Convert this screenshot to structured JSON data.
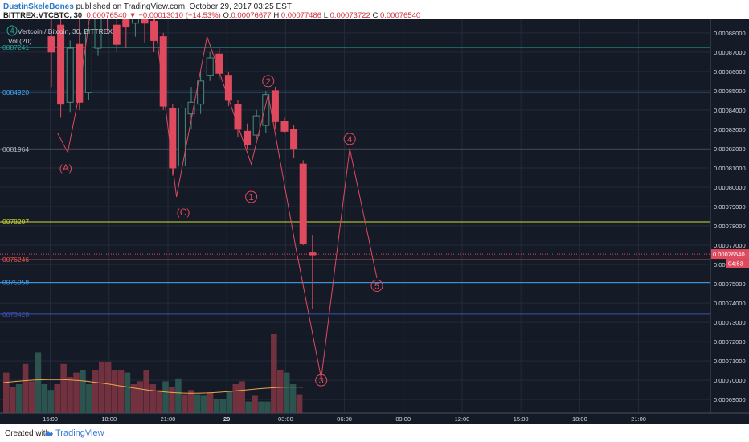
{
  "header": {
    "author": "DustinSkeleBones",
    "published_text": " published on TradingView.com, October 29, 2017 03:25 EST",
    "symbol_line": "BITTREX:VTCBTC, 30",
    "change": "▼ −0.00013010 (−14.53%)",
    "o_label": " O:",
    "o_value": "0.00076677",
    "h_label": " H:",
    "h_value": "0.00077486",
    "l_label": " L:",
    "l_value": "0.00073722",
    "c_label": " C:",
    "c_value": "0.00076540"
  },
  "legend": {
    "series_title": "Vertcoin / Bitcoin, 30, BITTREX",
    "volume_title": "Vol (20)"
  },
  "footer": {
    "created_with": "Created with",
    "brand": "TradingView"
  },
  "colors": {
    "background": "#141a26",
    "bull": "#3a6b5f",
    "bear": "#e04a5e",
    "grid": "#242b3b",
    "axis_text": "#d6d8de",
    "waves": "#e04a5e"
  },
  "chart_data": {
    "type": "candlestick",
    "x_tick_labels": [
      "15:00",
      "18:00",
      "21:00",
      "29",
      "03:00",
      "06:00",
      "09:00",
      "12:00",
      "15:00",
      "18:00",
      "21:00"
    ],
    "y_tick_labels": [
      "0.00088000",
      "0.00087000",
      "0.00086000",
      "0.00085000",
      "0.00084000",
      "0.00083000",
      "0.00082000",
      "0.00081000",
      "0.00080000",
      "0.00079000",
      "0.00078000",
      "0.00077000",
      "0.00076000",
      "0.00075000",
      "0.00074000",
      "0.00073000",
      "0.00072000",
      "0.00071000",
      "0.00070000",
      "0.00069000"
    ],
    "ylim": [
      0.000683,
      0.000887
    ],
    "last_price": "0.00076540",
    "countdown": "04:53",
    "hlines": [
      {
        "label": "0087241",
        "value": 0.00087241,
        "color": "#26a69a"
      },
      {
        "label": "0084920",
        "value": 0.0008492,
        "color": "#42a5f5"
      },
      {
        "label": "0081964",
        "value": 0.00081964,
        "color": "#b0b3ba"
      },
      {
        "label": "0078207",
        "value": 0.00078207,
        "color": "#cddc39"
      },
      {
        "label": "0076246",
        "value": 0.00076246,
        "color": "#ef5350"
      },
      {
        "label": "0075058",
        "value": 0.00075058,
        "color": "#42a5f5"
      },
      {
        "label": "0073428",
        "value": 0.00073428,
        "color": "#3f51b5"
      }
    ],
    "candles": [
      {
        "x": 1,
        "o": 0.000878,
        "h": 0.00089,
        "l": 0.000852,
        "c": 0.00087
      },
      {
        "x": 2,
        "o": 0.000884,
        "h": 0.00089,
        "l": 0.000836,
        "c": 0.000843
      },
      {
        "x": 3,
        "o": 0.000844,
        "h": 0.000876,
        "l": 0.000839,
        "c": 0.000872
      },
      {
        "x": 4,
        "o": 0.000874,
        "h": 0.000889,
        "l": 0.00084,
        "c": 0.000844
      },
      {
        "x": 5,
        "o": 0.000849,
        "h": 0.000883,
        "l": 0.000845,
        "c": 0.000881
      },
      {
        "x": 6,
        "o": 0.000872,
        "h": 0.00089,
        "l": 0.000868,
        "c": 0.000888
      },
      {
        "x": 7,
        "o": 0.000895,
        "h": 0.000898,
        "l": 0.00088,
        "c": 0.000888
      },
      {
        "x": 8,
        "o": 0.000884,
        "h": 0.00089,
        "l": 0.00087,
        "c": 0.000874
      },
      {
        "x": 9,
        "o": 0.00089,
        "h": 0.000892,
        "l": 0.000872,
        "c": 0.000883
      },
      {
        "x": 10,
        "o": 0.000885,
        "h": 0.000895,
        "l": 0.000878,
        "c": 0.00089
      },
      {
        "x": 11,
        "o": 0.000893,
        "h": 0.000895,
        "l": 0.000875,
        "c": 0.000885
      },
      {
        "x": 12,
        "o": 0.000886,
        "h": 0.000888,
        "l": 0.00087,
        "c": 0.000876
      },
      {
        "x": 13,
        "o": 0.000878,
        "h": 0.00088,
        "l": 0.00084,
        "c": 0.000842
      },
      {
        "x": 14,
        "o": 0.000841,
        "h": 0.000843,
        "l": 0.000806,
        "c": 0.00081
      },
      {
        "x": 15,
        "o": 0.000811,
        "h": 0.000843,
        "l": 0.000808,
        "c": 0.000841
      },
      {
        "x": 16,
        "o": 0.000838,
        "h": 0.000852,
        "l": 0.00083,
        "c": 0.000844
      },
      {
        "x": 17,
        "o": 0.000843,
        "h": 0.00086,
        "l": 0.000838,
        "c": 0.000855
      },
      {
        "x": 18,
        "o": 0.000858,
        "h": 0.00087,
        "l": 0.000855,
        "c": 0.000867
      },
      {
        "x": 19,
        "o": 0.000869,
        "h": 0.000872,
        "l": 0.000856,
        "c": 0.000859
      },
      {
        "x": 20,
        "o": 0.000858,
        "h": 0.00086,
        "l": 0.000842,
        "c": 0.000845
      },
      {
        "x": 21,
        "o": 0.000843,
        "h": 0.000845,
        "l": 0.000826,
        "c": 0.00083
      },
      {
        "x": 22,
        "o": 0.000829,
        "h": 0.000833,
        "l": 0.00082,
        "c": 0.000822
      },
      {
        "x": 23,
        "o": 0.000827,
        "h": 0.00084,
        "l": 0.000825,
        "c": 0.000837
      },
      {
        "x": 24,
        "o": 0.000832,
        "h": 0.00085,
        "l": 0.000828,
        "c": 0.000848
      },
      {
        "x": 25,
        "o": 0.00085,
        "h": 0.000852,
        "l": 0.00083,
        "c": 0.000834
      },
      {
        "x": 26,
        "o": 0.000834,
        "h": 0.000836,
        "l": 0.000828,
        "c": 0.000829
      },
      {
        "x": 27,
        "o": 0.00083,
        "h": 0.000832,
        "l": 0.000815,
        "c": 0.00082
      },
      {
        "x": 28,
        "o": 0.000812,
        "h": 0.000814,
        "l": 0.00077,
        "c": 0.000771
      },
      {
        "x": 29,
        "o": 0.000766,
        "h": 0.000775,
        "l": 0.000737,
        "c": 0.000765
      }
    ],
    "volume": [
      {
        "x": 0,
        "v": 0.28,
        "bull": false
      },
      {
        "x": 1,
        "v": 0.18,
        "bull": false
      },
      {
        "x": 2,
        "v": 0.2,
        "bull": true
      },
      {
        "x": 3,
        "v": 0.34,
        "bull": false
      },
      {
        "x": 4,
        "v": 0.22,
        "bull": false
      },
      {
        "x": 5,
        "v": 0.42,
        "bull": true
      },
      {
        "x": 6,
        "v": 0.2,
        "bull": true
      },
      {
        "x": 7,
        "v": 0.16,
        "bull": true
      },
      {
        "x": 8,
        "v": 0.2,
        "bull": false
      },
      {
        "x": 9,
        "v": 0.34,
        "bull": false
      },
      {
        "x": 10,
        "v": 0.25,
        "bull": false
      },
      {
        "x": 11,
        "v": 0.28,
        "bull": false
      },
      {
        "x": 12,
        "v": 0.3,
        "bull": true
      },
      {
        "x": 13,
        "v": 0.2,
        "bull": true
      },
      {
        "x": 14,
        "v": 0.3,
        "bull": false
      },
      {
        "x": 15,
        "v": 0.35,
        "bull": false
      },
      {
        "x": 16,
        "v": 0.35,
        "bull": false
      },
      {
        "x": 17,
        "v": 0.3,
        "bull": false
      },
      {
        "x": 18,
        "v": 0.3,
        "bull": false
      },
      {
        "x": 19,
        "v": 0.28,
        "bull": true
      },
      {
        "x": 20,
        "v": 0.2,
        "bull": false
      },
      {
        "x": 21,
        "v": 0.22,
        "bull": false
      },
      {
        "x": 22,
        "v": 0.3,
        "bull": false
      },
      {
        "x": 23,
        "v": 0.2,
        "bull": false
      },
      {
        "x": 24,
        "v": 0.16,
        "bull": false
      },
      {
        "x": 25,
        "v": 0.22,
        "bull": true
      },
      {
        "x": 26,
        "v": 0.18,
        "bull": false
      },
      {
        "x": 27,
        "v": 0.24,
        "bull": true
      },
      {
        "x": 28,
        "v": 0.13,
        "bull": false
      },
      {
        "x": 29,
        "v": 0.16,
        "bull": false
      },
      {
        "x": 30,
        "v": 0.13,
        "bull": true
      },
      {
        "x": 31,
        "v": 0.12,
        "bull": true
      },
      {
        "x": 32,
        "v": 0.14,
        "bull": false
      },
      {
        "x": 33,
        "v": 0.1,
        "bull": true
      },
      {
        "x": 34,
        "v": 0.1,
        "bull": true
      },
      {
        "x": 35,
        "v": 0.15,
        "bull": true
      },
      {
        "x": 36,
        "v": 0.2,
        "bull": false
      },
      {
        "x": 37,
        "v": 0.22,
        "bull": false
      },
      {
        "x": 38,
        "v": 0.08,
        "bull": true
      },
      {
        "x": 39,
        "v": 0.12,
        "bull": false
      },
      {
        "x": 40,
        "v": 0.08,
        "bull": true
      },
      {
        "x": 41,
        "v": 0.08,
        "bull": true
      },
      {
        "x": 42,
        "v": 0.55,
        "bull": false
      },
      {
        "x": 43,
        "v": 0.3,
        "bull": false
      },
      {
        "x": 44,
        "v": 0.28,
        "bull": true
      },
      {
        "x": 45,
        "v": 0.2,
        "bull": true
      },
      {
        "x": 46,
        "v": 0.13,
        "bull": false
      }
    ],
    "wave_labels": [
      {
        "label": "(A)",
        "x": 9.2,
        "y": 0.00081
      },
      {
        "label": "(C)",
        "x": 26.5,
        "y": 0.000787
      },
      {
        "label": "1",
        "x": 36.5,
        "y": 0.000795
      },
      {
        "label": "2",
        "x": 39.0,
        "y": 0.000855
      },
      {
        "label": "3",
        "x": 46.8,
        "y": 0.0007
      },
      {
        "label": "4",
        "x": 51.0,
        "y": 0.000825
      },
      {
        "label": "5",
        "x": 55.0,
        "y": 0.000749
      }
    ],
    "wave_path": [
      {
        "x": 8.0,
        "y": 0.000828
      },
      {
        "x": 9.5,
        "y": 0.000818
      },
      {
        "x": 11.0,
        "y": 0.000845
      },
      {
        "x": 13.0,
        "y": 0.000895
      },
      {
        "x": 22.0,
        "y": 0.000895
      },
      {
        "x": 25.5,
        "y": 0.000795
      },
      {
        "x": 30.0,
        "y": 0.000878
      },
      {
        "x": 36.5,
        "y": 0.000812
      },
      {
        "x": 39.0,
        "y": 0.000848
      },
      {
        "x": 43.0,
        "y": 0.00077
      },
      {
        "x": 46.8,
        "y": 0.000701
      },
      {
        "x": 51.0,
        "y": 0.00082
      },
      {
        "x": 55.0,
        "y": 0.000753
      }
    ]
  }
}
